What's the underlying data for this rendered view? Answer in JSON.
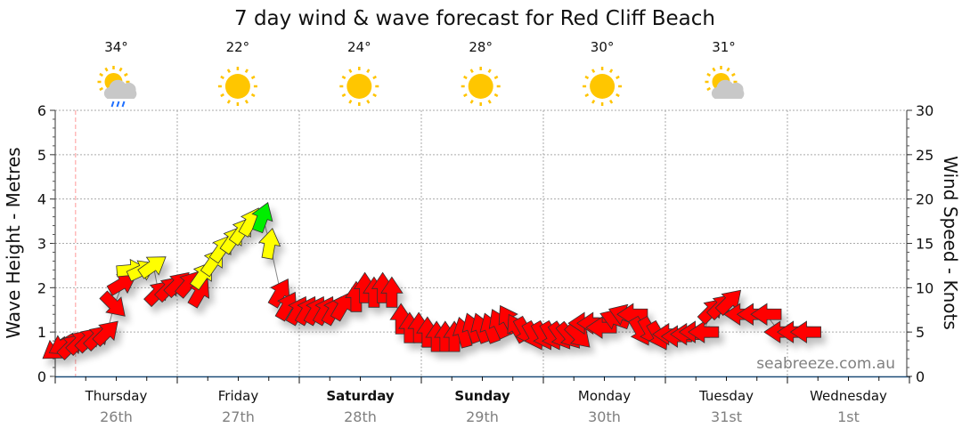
{
  "chart_data": {
    "type": "scatter",
    "title": "7 day wind & wave forecast for Red Cliff Beach",
    "ylabel": "Wave Height - Metres",
    "y2label": "Wind Speed - Knots",
    "ylim": [
      0,
      6
    ],
    "y2lim": [
      0,
      30
    ],
    "yticks": [
      "0",
      "1",
      "2",
      "3",
      "4",
      "5",
      "6"
    ],
    "y2ticks": [
      "0",
      "5",
      "10",
      "15",
      "20",
      "25",
      "30"
    ],
    "grid": true,
    "watermark": "seabreeze.com.au",
    "days": [
      {
        "day": "Thursday",
        "date": "26th",
        "bold": false,
        "temp": "34°",
        "icon": "sun-cloud-rain"
      },
      {
        "day": "Friday",
        "date": "27th",
        "bold": false,
        "temp": "22°",
        "icon": "sun"
      },
      {
        "day": "Saturday",
        "date": "28th",
        "bold": true,
        "temp": "24°",
        "icon": "sun"
      },
      {
        "day": "Sunday",
        "date": "29th",
        "bold": true,
        "temp": "28°",
        "icon": "sun"
      },
      {
        "day": "Monday",
        "date": "30th",
        "bold": false,
        "temp": "30°",
        "icon": "sun"
      },
      {
        "day": "Tuesday",
        "date": "31st",
        "bold": false,
        "temp": "31°",
        "icon": "sun-cloud"
      },
      {
        "day": "Wednesday",
        "date": "1st",
        "bold": false,
        "temp": "",
        "icon": ""
      }
    ],
    "now_hours": 4,
    "point_fields": [
      "hours_from_thursday_start",
      "wave_height_m",
      "wind_direction_deg",
      "wind_speed_kts"
    ],
    "points": [
      [
        0,
        0.6,
        235,
        4
      ],
      [
        1.4,
        0.7,
        240,
        4
      ],
      [
        3.2,
        0.7,
        45,
        6
      ],
      [
        4.9,
        0.8,
        45,
        6
      ],
      [
        6.7,
        0.85,
        45,
        6
      ],
      [
        8.4,
        0.9,
        45,
        6
      ],
      [
        10.2,
        1.0,
        45,
        7
      ],
      [
        11.6,
        1.6,
        135,
        8
      ],
      [
        13.3,
        2.1,
        60,
        9
      ],
      [
        15.1,
        2.4,
        85,
        12
      ],
      [
        17.2,
        2.4,
        65,
        12
      ],
      [
        19.3,
        2.5,
        55,
        13
      ],
      [
        20.3,
        1.9,
        45,
        9
      ],
      [
        22.4,
        2.0,
        45,
        9
      ],
      [
        24.2,
        2.1,
        45,
        9
      ],
      [
        26.3,
        2.1,
        40,
        9
      ],
      [
        28.5,
        1.9,
        30,
        9
      ],
      [
        29.1,
        2.3,
        35,
        12
      ],
      [
        31.2,
        2.6,
        35,
        12
      ],
      [
        32.9,
        2.9,
        35,
        13
      ],
      [
        35,
        3.1,
        35,
        13
      ],
      [
        36.8,
        3.3,
        35,
        14
      ],
      [
        38.5,
        3.5,
        30,
        14
      ],
      [
        40.8,
        3.6,
        20,
        18
      ],
      [
        42.2,
        3.0,
        10,
        12
      ],
      [
        44.3,
        1.9,
        30,
        8
      ],
      [
        45.7,
        1.6,
        30,
        8
      ],
      [
        47.8,
        1.5,
        30,
        8
      ],
      [
        49.6,
        1.5,
        30,
        8
      ],
      [
        51.3,
        1.5,
        30,
        8
      ],
      [
        53.1,
        1.5,
        30,
        8
      ],
      [
        54.8,
        1.5,
        30,
        8
      ],
      [
        56.6,
        1.6,
        30,
        8
      ],
      [
        59.2,
        1.8,
        0,
        8
      ],
      [
        60.9,
        2.0,
        0,
        8
      ],
      [
        62.7,
        1.9,
        0,
        8
      ],
      [
        64.4,
        2.0,
        0,
        8
      ],
      [
        66.2,
        1.9,
        0,
        8
      ],
      [
        68,
        1.3,
        0,
        7
      ],
      [
        69.7,
        1.1,
        0,
        7
      ],
      [
        71.5,
        1.1,
        0,
        7
      ],
      [
        73.2,
        1.0,
        0,
        7
      ],
      [
        75,
        0.9,
        0,
        7
      ],
      [
        76.7,
        0.9,
        0,
        7
      ],
      [
        78.5,
        0.9,
        0,
        7
      ],
      [
        80.2,
        1.0,
        -15,
        7
      ],
      [
        82,
        1.1,
        -20,
        7
      ],
      [
        83.7,
        1.1,
        -20,
        7
      ],
      [
        85.5,
        1.1,
        -20,
        7
      ],
      [
        87.2,
        1.2,
        -25,
        7
      ],
      [
        89,
        1.3,
        -30,
        7
      ],
      [
        90.7,
        1.1,
        -30,
        7
      ],
      [
        92.5,
        1.0,
        150,
        7
      ],
      [
        94.2,
        0.9,
        150,
        7
      ],
      [
        96,
        0.9,
        150,
        7
      ],
      [
        97.7,
        0.9,
        150,
        7
      ],
      [
        99.5,
        0.9,
        145,
        7
      ],
      [
        101.2,
        0.9,
        140,
        7
      ],
      [
        103,
        0.9,
        135,
        7
      ],
      [
        103.9,
        1.2,
        270,
        7
      ],
      [
        105.6,
        1.2,
        270,
        7
      ],
      [
        107.4,
        1.1,
        270,
        7
      ],
      [
        110,
        1.3,
        290,
        7
      ],
      [
        111.7,
        1.4,
        290,
        7
      ],
      [
        113.5,
        1.4,
        270,
        7
      ],
      [
        115.2,
        1.0,
        150,
        6
      ],
      [
        117,
        1.0,
        150,
        6
      ],
      [
        118.7,
        0.9,
        150,
        6
      ],
      [
        120.5,
        0.95,
        270,
        6
      ],
      [
        122.2,
        0.9,
        270,
        6
      ],
      [
        124,
        0.95,
        270,
        6
      ],
      [
        125.7,
        1.0,
        270,
        6
      ],
      [
        127.5,
        1.0,
        270,
        6
      ],
      [
        129.2,
        1.5,
        45,
        7
      ],
      [
        131,
        1.6,
        45,
        7
      ],
      [
        132.7,
        1.7,
        45,
        7
      ],
      [
        134.5,
        1.4,
        270,
        7
      ],
      [
        137.1,
        1.4,
        270,
        7
      ],
      [
        139.8,
        1.4,
        270,
        7
      ],
      [
        142.4,
        1.0,
        270,
        6
      ],
      [
        145,
        1.0,
        270,
        6
      ],
      [
        147.6,
        1.0,
        270,
        6
      ]
    ],
    "speed_colors": {
      "light": "#ff0000",
      "moderate": "#ffff00",
      "strong": "#00ee00"
    },
    "speed_thresholds_kts": [
      10,
      15
    ]
  }
}
